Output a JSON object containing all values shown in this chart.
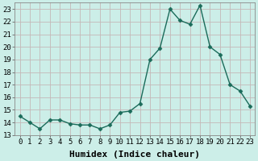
{
  "x": [
    0,
    1,
    2,
    3,
    4,
    5,
    6,
    7,
    8,
    9,
    10,
    11,
    12,
    13,
    14,
    15,
    16,
    17,
    18,
    19,
    20,
    21,
    22,
    23
  ],
  "y": [
    14.5,
    14.0,
    13.5,
    14.2,
    14.2,
    13.9,
    13.8,
    13.8,
    13.5,
    13.8,
    14.8,
    14.9,
    15.5,
    19.0,
    19.9,
    23.0,
    22.1,
    21.8,
    23.3,
    20.0,
    19.4,
    17.0,
    16.5,
    15.3
  ],
  "line_color": "#1a6b5a",
  "marker": "D",
  "marker_size": 2.5,
  "bg_color": "#cceee8",
  "plot_bg": "#cceee8",
  "grid_color": "#c4b8b8",
  "xlabel": "Humidex (Indice chaleur)",
  "ylim": [
    13,
    23.5
  ],
  "yticks": [
    13,
    14,
    15,
    16,
    17,
    18,
    19,
    20,
    21,
    22,
    23
  ],
  "xticks": [
    0,
    1,
    2,
    3,
    4,
    5,
    6,
    7,
    8,
    9,
    10,
    11,
    12,
    13,
    14,
    15,
    16,
    17,
    18,
    19,
    20,
    21,
    22,
    23
  ],
  "tick_fontsize": 6.5,
  "xlabel_fontsize": 8,
  "line_width": 1.0
}
